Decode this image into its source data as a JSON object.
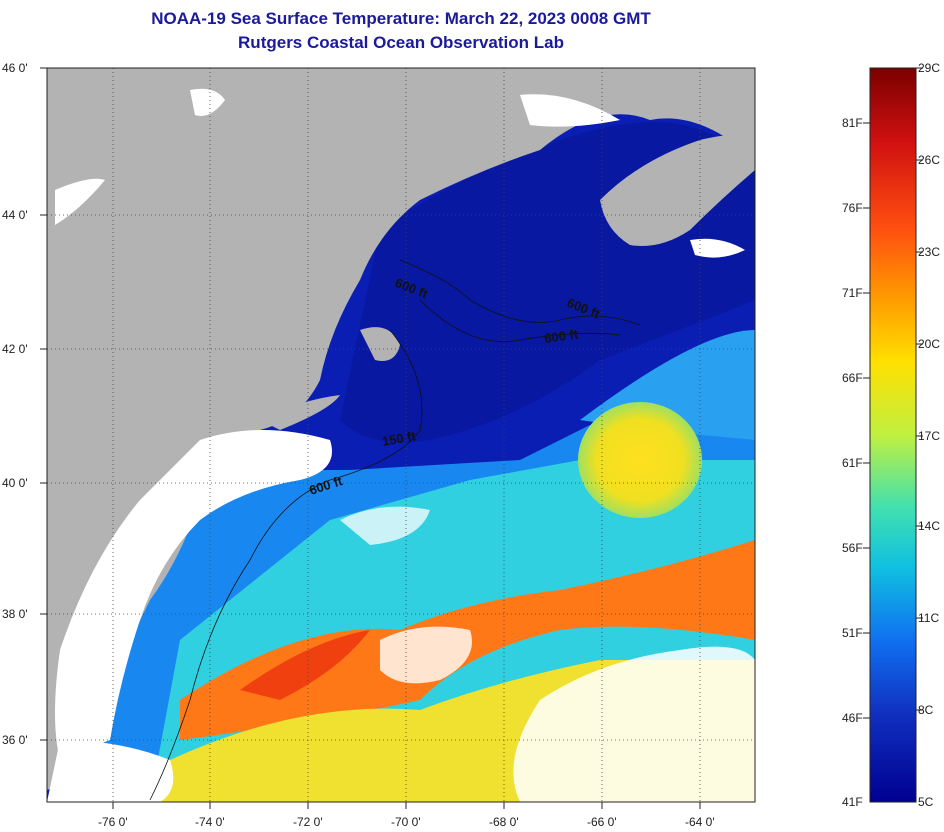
{
  "title": {
    "line1": "NOAA-19 Sea Surface Temperature:  March 22, 2023 0008 GMT",
    "line2": "Rutgers Coastal Ocean Observation Lab"
  },
  "axes": {
    "lat_labels": [
      "46 0'",
      "44 0'",
      "42 0'",
      "40 0'",
      "38 0'",
      "36 0'"
    ],
    "lon_labels": [
      "-76 0'",
      "-74 0'",
      "-72 0'",
      "-70 0'",
      "-68 0'",
      "-66 0'",
      "-64 0'"
    ]
  },
  "contour_labels": [
    "600 ft",
    "600 ft",
    "600 ft",
    "150 ft",
    "600 ft"
  ],
  "colorbar": {
    "celsius": [
      "29C",
      "26C",
      "23C",
      "20C",
      "17C",
      "14C",
      "11C",
      "8C",
      "5C"
    ],
    "fahrenheit": [
      "81F",
      "76F",
      "71F",
      "66F",
      "61F",
      "56F",
      "51F",
      "46F",
      "41F"
    ],
    "gradient": [
      "#7a0000",
      "#d01010",
      "#ff5010",
      "#ffa000",
      "#ffe000",
      "#c0f040",
      "#40e0b0",
      "#10c0e0",
      "#1070f0",
      "#1030c0",
      "#000090"
    ]
  },
  "colors": {
    "land": "#b3b3b3",
    "cloud": "#ffffff",
    "cold_water": "#0a1eb4",
    "title_text": "#1a1a9a"
  }
}
